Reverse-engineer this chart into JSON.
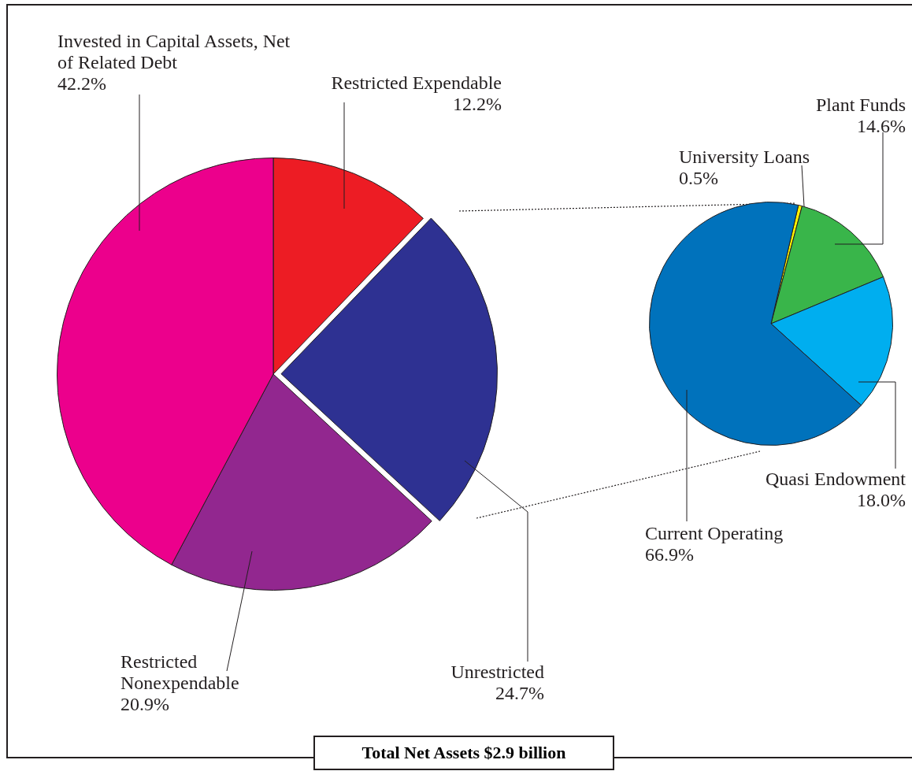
{
  "chart_data": [
    {
      "type": "pie",
      "title": "Total Net Assets $2.9 billion",
      "categories": [
        "Restricted Expendable",
        "Unrestricted",
        "Restricted Nonexpendable",
        "Invested in Capital Assets, Net of Related Debt"
      ],
      "values": [
        12.2,
        24.7,
        20.9,
        42.2
      ],
      "value_labels": [
        "12.2%",
        "24.7%",
        "20.9%",
        "42.2%"
      ],
      "colors": [
        "#ed1c24",
        "#2e3192",
        "#92278f",
        "#ec008c"
      ]
    },
    {
      "type": "pie",
      "categories": [
        "University Loans",
        "Plant Funds",
        "Quasi Endowment",
        "Current Operating"
      ],
      "values": [
        0.5,
        14.6,
        18.0,
        66.9
      ],
      "value_labels": [
        "0.5%",
        "14.6%",
        "18.0%",
        "66.9%"
      ],
      "colors": [
        "#fff200",
        "#39b54a",
        "#00aeef",
        "#0072bc"
      ]
    }
  ]
}
